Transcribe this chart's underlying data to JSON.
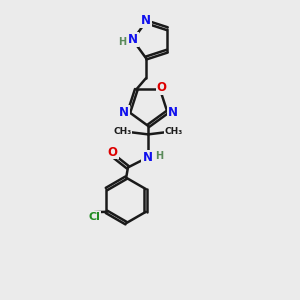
{
  "bg_color": "#ebebeb",
  "bond_color": "#1a1a1a",
  "bond_width": 1.8,
  "atom_colors": {
    "N": "#1010ee",
    "O": "#dd0000",
    "Cl": "#228B22",
    "H": "#5a8a5a"
  },
  "font_size_atom": 8.5,
  "font_size_small": 7.0,
  "font_size_cl": 8.0
}
